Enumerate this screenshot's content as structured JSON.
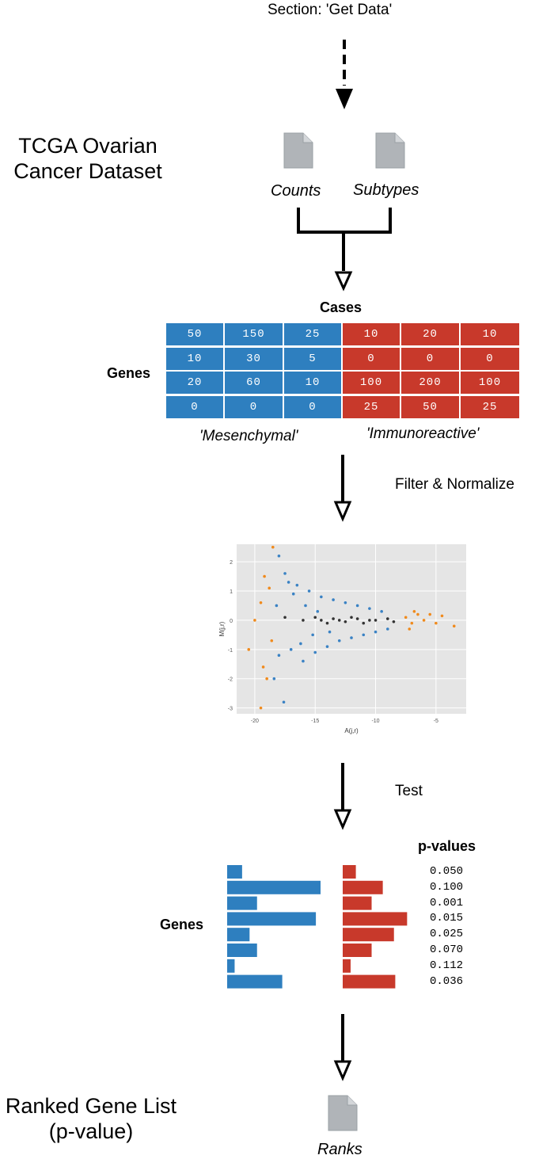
{
  "section_title": "Section: 'Get Data'",
  "dataset_title": [
    "TCGA Ovarian",
    "Cancer Dataset"
  ],
  "files": {
    "counts": "Counts",
    "subtypes": "Subtypes",
    "ranks": "Ranks"
  },
  "matrix": {
    "cases_label": "Cases",
    "genes_label": "Genes",
    "rows": [
      [
        "50",
        "150",
        "25",
        "10",
        "20",
        "10"
      ],
      [
        "10",
        "30",
        "5",
        "0",
        "0",
        "0"
      ],
      [
        "20",
        "60",
        "10",
        "100",
        "200",
        "100"
      ],
      [
        "0",
        "0",
        "0",
        "25",
        "50",
        "25"
      ]
    ],
    "group_labels": [
      "'Mesenchymal'",
      "'Immunoreactive'"
    ],
    "colors": {
      "mesenchymal": "#2e7fbf",
      "immunoreactive": "#c8392b"
    }
  },
  "steps": {
    "filter": "Filter & Normalize",
    "test": "Test"
  },
  "chart_data": {
    "type": "scatter",
    "xlabel": "A(j,r)",
    "ylabel": "M(j,r)",
    "xlim": [
      -21.5,
      -2.5
    ],
    "ylim": [
      -3.2,
      2.6
    ],
    "xticks": [
      "-20",
      "-15",
      "-10",
      "-5"
    ],
    "yticks": [
      "2",
      "1",
      "0",
      "-1",
      "-2",
      "-3"
    ],
    "grid": true,
    "series": [
      {
        "color": "#3a82c4",
        "points": [
          [
            -18.0,
            2.2
          ],
          [
            -17.5,
            1.6
          ],
          [
            -18.2,
            0.5
          ],
          [
            -18.0,
            -1.2
          ],
          [
            -17.6,
            -2.8
          ],
          [
            -18.4,
            -2.0
          ],
          [
            -16.5,
            1.2
          ],
          [
            -16.0,
            -1.4
          ],
          [
            -15.5,
            1.0
          ],
          [
            -15.0,
            -1.1
          ],
          [
            -14.5,
            0.8
          ],
          [
            -14.0,
            -0.9
          ],
          [
            -13.5,
            0.7
          ],
          [
            -13.0,
            -0.7
          ],
          [
            -12.5,
            0.6
          ],
          [
            -12.0,
            -0.6
          ],
          [
            -11.5,
            0.5
          ],
          [
            -11.0,
            -0.5
          ],
          [
            -10.5,
            0.4
          ],
          [
            -10.0,
            -0.4
          ],
          [
            -9.5,
            0.3
          ],
          [
            -9.0,
            -0.3
          ],
          [
            -16.8,
            0.9
          ],
          [
            -16.2,
            -0.8
          ],
          [
            -15.8,
            0.5
          ],
          [
            -15.2,
            -0.5
          ],
          [
            -17.2,
            1.3
          ],
          [
            -17.0,
            -1.0
          ],
          [
            -14.8,
            0.3
          ],
          [
            -13.8,
            -0.4
          ]
        ]
      },
      {
        "color": "#f08a1c",
        "points": [
          [
            -18.5,
            2.5
          ],
          [
            -19.2,
            1.5
          ],
          [
            -18.8,
            1.1
          ],
          [
            -19.5,
            0.6
          ],
          [
            -20.0,
            0.0
          ],
          [
            -20.5,
            -1.0
          ],
          [
            -19.3,
            -1.6
          ],
          [
            -19.0,
            -2.0
          ],
          [
            -19.5,
            -3.0
          ],
          [
            -18.6,
            -0.7
          ],
          [
            -7.5,
            0.1
          ],
          [
            -7.0,
            -0.1
          ],
          [
            -6.5,
            0.2
          ],
          [
            -6.0,
            0.0
          ],
          [
            -5.5,
            0.2
          ],
          [
            -5.0,
            -0.1
          ],
          [
            -4.5,
            0.15
          ],
          [
            -3.5,
            -0.2
          ],
          [
            -7.2,
            -0.3
          ],
          [
            -6.8,
            0.3
          ]
        ]
      },
      {
        "color": "#333333",
        "points": [
          [
            -17.5,
            0.1
          ],
          [
            -16.0,
            0.0
          ],
          [
            -15.0,
            0.1
          ],
          [
            -14.0,
            -0.1
          ],
          [
            -13.0,
            0.0
          ],
          [
            -12.0,
            0.1
          ],
          [
            -11.0,
            -0.1
          ],
          [
            -10.0,
            0.0
          ],
          [
            -9.0,
            0.05
          ],
          [
            -8.5,
            -0.05
          ],
          [
            -14.5,
            0.0
          ],
          [
            -12.5,
            -0.05
          ],
          [
            -11.5,
            0.05
          ],
          [
            -10.5,
            0.0
          ],
          [
            -13.5,
            0.05
          ]
        ]
      }
    ]
  },
  "pvalues": {
    "title": "p-values",
    "genes_label": "Genes",
    "values": [
      "0.050",
      "0.100",
      "0.001",
      "0.015",
      "0.025",
      "0.070",
      "0.112",
      "0.036"
    ],
    "left_bars": [
      0.16,
      1.0,
      0.32,
      0.95,
      0.24,
      0.32,
      0.08,
      0.59
    ],
    "right_bars": [
      0.2,
      0.61,
      0.44,
      0.98,
      0.78,
      0.44,
      0.12,
      0.8
    ]
  },
  "final_title": [
    "Ranked Gene List",
    "(p-value)"
  ]
}
